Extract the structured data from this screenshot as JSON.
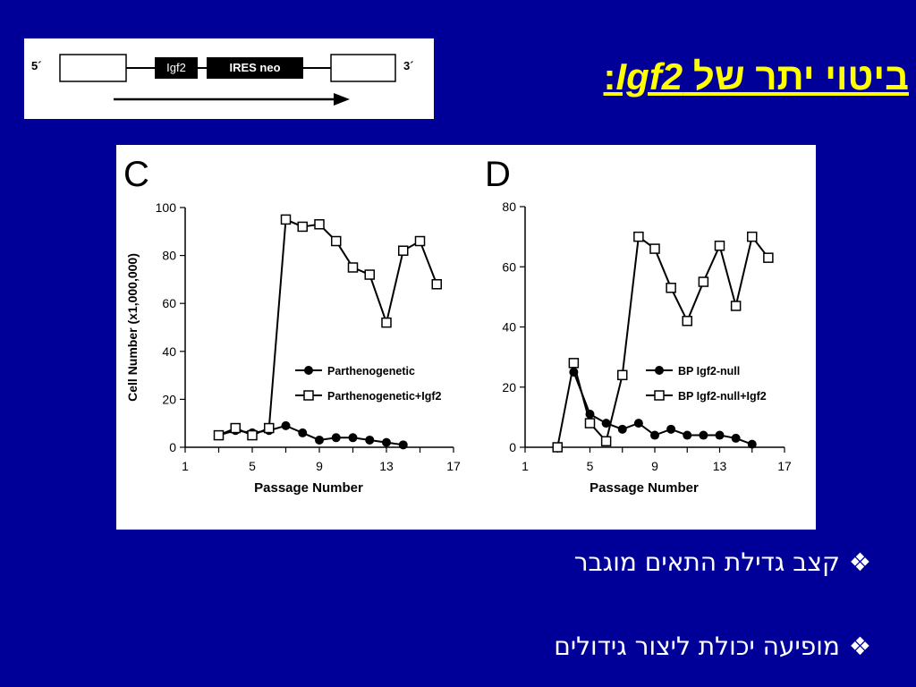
{
  "title": {
    "pre": "ביטוי יתר של ",
    "gene": "Igf2",
    "post": ":"
  },
  "construct": {
    "five_prime": "5´",
    "three_prime": "3´",
    "box1": "Igf2",
    "box2": "IRES neo"
  },
  "bullets": [
    {
      "marker": "❖",
      "text": "קצב גדילת התאים מוגבר"
    },
    {
      "marker": "❖",
      "text": "מופיעה יכולת ליצור גידולים"
    }
  ],
  "chart_data": [
    {
      "type": "line",
      "panel": "C",
      "xlabel": "Passage Number",
      "ylabel": "Cell Number (x1,000,000)",
      "xlim": [
        1,
        17
      ],
      "ylim": [
        0,
        100
      ],
      "xticks": [
        1,
        5,
        9,
        13,
        17
      ],
      "yticks": [
        0,
        20,
        40,
        60,
        80,
        100
      ],
      "legend_position": "center-right",
      "series": [
        {
          "name": "Parthenogenetic",
          "marker": "filled-circle",
          "x": [
            3,
            4,
            5,
            6,
            7,
            8,
            9,
            10,
            11,
            12,
            13,
            14
          ],
          "y": [
            5,
            7,
            6,
            7,
            9,
            6,
            3,
            4,
            4,
            3,
            2,
            1
          ]
        },
        {
          "name": "Parthenogenetic+Igf2",
          "marker": "open-square",
          "x": [
            3,
            4,
            5,
            6,
            7,
            8,
            9,
            10,
            11,
            12,
            13,
            14,
            15,
            16
          ],
          "y": [
            5,
            8,
            5,
            8,
            95,
            92,
            93,
            86,
            75,
            72,
            52,
            82,
            86,
            68
          ]
        }
      ]
    },
    {
      "type": "line",
      "panel": "D",
      "xlabel": "Passage Number",
      "ylabel": "",
      "xlim": [
        1,
        17
      ],
      "ylim": [
        0,
        80
      ],
      "xticks": [
        1,
        5,
        9,
        13,
        17
      ],
      "yticks": [
        0,
        20,
        40,
        60,
        80
      ],
      "legend_position": "center-right",
      "series": [
        {
          "name": "BP Igf2-null",
          "marker": "filled-circle",
          "x": [
            4,
            5,
            6,
            7,
            8,
            9,
            10,
            11,
            12,
            13,
            14,
            15
          ],
          "y": [
            25,
            11,
            8,
            6,
            8,
            4,
            6,
            4,
            4,
            4,
            3,
            1
          ]
        },
        {
          "name": "BP Igf2-null+Igf2",
          "marker": "open-square",
          "x": [
            3,
            4,
            5,
            6,
            7,
            8,
            9,
            10,
            11,
            12,
            13,
            14,
            15,
            16
          ],
          "y": [
            0,
            28,
            8,
            2,
            24,
            70,
            66,
            53,
            42,
            55,
            67,
            47,
            70,
            63
          ]
        }
      ]
    }
  ]
}
